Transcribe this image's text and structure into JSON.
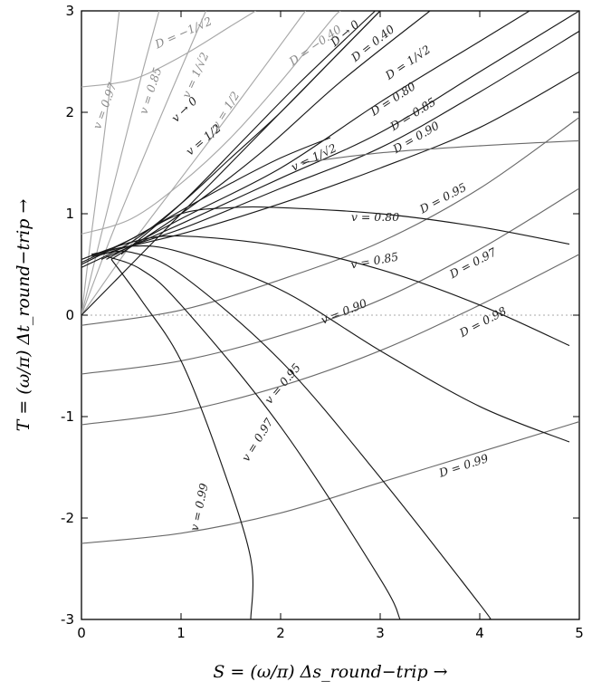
{
  "chart_data": {
    "type": "line",
    "xlabel": "S = (ω/π) Δs_round−trip →",
    "ylabel": "T = (ω/π) Δt_round−trip →",
    "xlim": [
      0,
      5
    ],
    "ylim": [
      -3,
      3
    ],
    "x_ticks": [
      "0",
      "1",
      "2",
      "3",
      "4",
      "5"
    ],
    "y_ticks": [
      "-3",
      "-2",
      "-1",
      "0",
      "1",
      "2",
      "3"
    ],
    "zero_line": true,
    "colors": {
      "light": "#a8a8a8",
      "dark": "#1a1a1a",
      "mid": "#6a6a6a",
      "zero": "#aaaaaa"
    },
    "series": [
      {
        "family": "v",
        "name": "v=0.97",
        "label": "v = 0.97",
        "tone": "light",
        "points": [
          [
            0,
            0
          ],
          [
            0.1,
            0.8
          ],
          [
            0.2,
            1.55
          ],
          [
            0.3,
            2.35
          ],
          [
            0.38,
            3
          ]
        ],
        "label_at": [
          0.27,
          2.05
        ],
        "label_rot": -70
      },
      {
        "family": "v",
        "name": "v=0.85",
        "label": "v = 0.85",
        "tone": "light",
        "points": [
          [
            0,
            0
          ],
          [
            0.2,
            0.8
          ],
          [
            0.4,
            1.58
          ],
          [
            0.6,
            2.35
          ],
          [
            0.78,
            3
          ]
        ],
        "label_at": [
          0.73,
          2.2
        ],
        "label_rot": -72
      },
      {
        "family": "v",
        "name": "v=1/√2",
        "label": "v = 1/√2",
        "tone": "light",
        "points": [
          [
            0,
            0
          ],
          [
            0.3,
            0.78
          ],
          [
            0.6,
            1.5
          ],
          [
            0.9,
            2.2
          ],
          [
            1.25,
            3
          ]
        ],
        "label_at": [
          1.18,
          2.35
        ],
        "label_rot": -66
      },
      {
        "family": "v",
        "name": "v=1/2",
        "label": "v = 1/2",
        "tone": "light",
        "points": [
          [
            0,
            0
          ],
          [
            0.5,
            0.7
          ],
          [
            1.0,
            1.35
          ],
          [
            1.5,
            2.0
          ],
          [
            2.25,
            3
          ]
        ],
        "label_at": [
          1.48,
          2.0
        ],
        "label_rot": -58
      },
      {
        "family": "D",
        "name": "D=-1/√2",
        "label": "D = −1/√2",
        "tone": "light",
        "points": [
          [
            0,
            2.25
          ],
          [
            0.5,
            2.32
          ],
          [
            1.0,
            2.55
          ],
          [
            1.5,
            2.85
          ],
          [
            1.75,
            3
          ]
        ],
        "label_at": [
          1.04,
          2.75
        ],
        "label_rot": -24
      },
      {
        "family": "D",
        "name": "D=-0.40",
        "label": "D = −0.40",
        "tone": "light",
        "points": [
          [
            0,
            0.8
          ],
          [
            0.5,
            0.95
          ],
          [
            1.0,
            1.3
          ],
          [
            1.5,
            1.75
          ],
          [
            2.0,
            2.3
          ],
          [
            2.5,
            2.9
          ],
          [
            2.6,
            3
          ]
        ],
        "label_at": [
          2.37,
          2.63
        ],
        "label_rot": -35
      },
      {
        "family": "v",
        "name": "v→0",
        "label": "v → 0",
        "tone": "dark",
        "points": [
          [
            0,
            0
          ],
          [
            0.5,
            0.5
          ],
          [
            1,
            1.0
          ],
          [
            1.5,
            1.5
          ],
          [
            2,
            2.0
          ],
          [
            2.5,
            2.5
          ],
          [
            3,
            3.0
          ]
        ],
        "label_at": [
          1.06,
          2.0
        ],
        "label_rot": -44
      },
      {
        "family": "v",
        "name": "v=1/2 (dark)",
        "label": "v = 1/2",
        "tone": "dark",
        "points": [
          [
            0,
            0.47
          ],
          [
            0.5,
            0.72
          ],
          [
            1.0,
            1.1
          ],
          [
            1.5,
            1.55
          ],
          [
            2.0,
            2.0
          ],
          [
            2.5,
            2.5
          ],
          [
            3,
            3.0
          ]
        ],
        "label_at": [
          1.25,
          1.7
        ],
        "label_rot": -40
      },
      {
        "family": "D",
        "name": "D→0",
        "label": "D → 0",
        "tone": "dark",
        "points": [
          [
            0.4,
            0.6
          ],
          [
            1.0,
            1.1
          ],
          [
            1.6,
            1.7
          ],
          [
            2.2,
            2.3
          ],
          [
            2.95,
            3
          ]
        ],
        "label_at": [
          2.67,
          2.75
        ],
        "label_rot": -40
      },
      {
        "family": "D",
        "name": "D=0.40",
        "label": "D = 0.40",
        "tone": "dark",
        "points": [
          [
            0.3,
            0.55
          ],
          [
            1.0,
            1.0
          ],
          [
            1.8,
            1.6
          ],
          [
            2.6,
            2.3
          ],
          [
            3.5,
            3
          ]
        ],
        "label_at": [
          2.95,
          2.65
        ],
        "label_rot": -38
      },
      {
        "family": "D",
        "name": "D=1/√2",
        "label": "D = 1/√2",
        "tone": "dark",
        "points": [
          [
            0.25,
            0.55
          ],
          [
            1.0,
            0.95
          ],
          [
            2.0,
            1.45
          ],
          [
            3.0,
            2.1
          ],
          [
            4.0,
            2.7
          ],
          [
            4.5,
            3
          ]
        ],
        "label_at": [
          3.3,
          2.46
        ],
        "label_rot": -34
      },
      {
        "family": "D",
        "name": "D=0.80",
        "label": "D = 0.80",
        "tone": "dark",
        "points": [
          [
            0.2,
            0.55
          ],
          [
            1.0,
            0.9
          ],
          [
            2.0,
            1.35
          ],
          [
            3.0,
            1.8
          ],
          [
            4.0,
            2.4
          ],
          [
            5.0,
            3
          ]
        ],
        "label_at": [
          3.15,
          2.1
        ],
        "label_rot": -33
      },
      {
        "family": "D",
        "name": "D=0.85",
        "label": "D = 0.85",
        "tone": "dark",
        "points": [
          [
            0.15,
            0.58
          ],
          [
            1.0,
            0.85
          ],
          [
            2.0,
            1.25
          ],
          [
            3.0,
            1.65
          ],
          [
            4.0,
            2.2
          ],
          [
            5.0,
            2.8
          ]
        ],
        "label_at": [
          3.35,
          1.95
        ],
        "label_rot": -32
      },
      {
        "family": "D",
        "name": "D=0.90",
        "label": "D = 0.90",
        "tone": "dark",
        "points": [
          [
            0.1,
            0.6
          ],
          [
            1.0,
            0.8
          ],
          [
            2.0,
            1.1
          ],
          [
            3.0,
            1.45
          ],
          [
            4.0,
            1.85
          ],
          [
            5.0,
            2.4
          ]
        ],
        "label_at": [
          3.38,
          1.72
        ],
        "label_rot": -30
      },
      {
        "family": "D",
        "name": "D=0.95",
        "label": "D = 0.95",
        "tone": "mid",
        "points": [
          [
            0,
            -0.1
          ],
          [
            1,
            0.05
          ],
          [
            2,
            0.35
          ],
          [
            3,
            0.72
          ],
          [
            4,
            1.25
          ],
          [
            5,
            1.95
          ]
        ],
        "label_at": [
          3.65,
          1.12
        ],
        "label_rot": -28
      },
      {
        "family": "D",
        "name": "D=0.97",
        "label": "D = 0.97",
        "tone": "mid",
        "points": [
          [
            0,
            -0.58
          ],
          [
            1,
            -0.45
          ],
          [
            2,
            -0.2
          ],
          [
            3,
            0.15
          ],
          [
            4,
            0.65
          ],
          [
            5,
            1.25
          ]
        ],
        "label_at": [
          3.95,
          0.48
        ],
        "label_rot": -28
      },
      {
        "family": "D",
        "name": "D=0.98",
        "label": "D = 0.98",
        "tone": "mid",
        "points": [
          [
            0,
            -1.08
          ],
          [
            1,
            -0.95
          ],
          [
            2,
            -0.7
          ],
          [
            3,
            -0.35
          ],
          [
            4,
            0.1
          ],
          [
            5,
            0.6
          ]
        ],
        "label_at": [
          4.05,
          -0.1
        ],
        "label_rot": -28
      },
      {
        "family": "D",
        "name": "D=0.99",
        "label": "D = 0.99",
        "tone": "mid",
        "points": [
          [
            0,
            -2.25
          ],
          [
            1,
            -2.15
          ],
          [
            2,
            -1.95
          ],
          [
            3,
            -1.65
          ],
          [
            4,
            -1.35
          ],
          [
            5,
            -1.05
          ]
        ],
        "label_at": [
          3.85,
          -1.52
        ],
        "label_rot": -18
      },
      {
        "family": "D",
        "name": "D-top",
        "label": "",
        "tone": "mid",
        "points": [
          [
            2.2,
            1.5
          ],
          [
            3,
            1.6
          ],
          [
            4,
            1.67
          ],
          [
            5,
            1.72
          ]
        ],
        "label_at": null,
        "label_rot": 0
      },
      {
        "family": "v",
        "name": "v=1/√2 (dark)",
        "label": "v = 1/√2",
        "tone": "dark",
        "points": [
          [
            0,
            0.5
          ],
          [
            0.5,
            0.75
          ],
          [
            1.0,
            1.03
          ],
          [
            1.5,
            1.3
          ],
          [
            2.0,
            1.55
          ],
          [
            2.5,
            1.75
          ]
        ],
        "label_at": [
          2.35,
          1.52
        ],
        "label_rot": -25
      },
      {
        "family": "v",
        "name": "v=0.80",
        "label": "v = 0.80",
        "tone": "dark",
        "points": [
          [
            0,
            0.52
          ],
          [
            0.5,
            0.75
          ],
          [
            1.0,
            1.0
          ],
          [
            1.5,
            1.06
          ],
          [
            2.0,
            1.06
          ],
          [
            3.0,
            1.0
          ],
          [
            4.0,
            0.87
          ],
          [
            4.9,
            0.7
          ]
        ],
        "label_at": [
          2.95,
          0.93
        ],
        "label_rot": 0
      },
      {
        "family": "v",
        "name": "v=0.85",
        "label": "v = 0.85",
        "tone": "dark",
        "points": [
          [
            0,
            0.55
          ],
          [
            0.5,
            0.72
          ],
          [
            1.0,
            0.78
          ],
          [
            2.0,
            0.68
          ],
          [
            3.0,
            0.45
          ],
          [
            4.0,
            0.1
          ],
          [
            4.9,
            -0.3
          ]
        ],
        "label_at": [
          2.95,
          0.5
        ],
        "label_rot": -10
      },
      {
        "family": "v",
        "name": "v=0.90",
        "label": "v = 0.90",
        "tone": "dark",
        "points": [
          [
            0.1,
            0.58
          ],
          [
            0.5,
            0.68
          ],
          [
            1.0,
            0.62
          ],
          [
            2.0,
            0.25
          ],
          [
            3.0,
            -0.35
          ],
          [
            4.0,
            -0.9
          ],
          [
            4.9,
            -1.25
          ]
        ],
        "label_at": [
          2.65,
          0.0
        ],
        "label_rot": -22
      },
      {
        "family": "v",
        "name": "v=0.95",
        "label": "v = 0.95",
        "tone": "dark",
        "points": [
          [
            0.2,
            0.6
          ],
          [
            0.5,
            0.62
          ],
          [
            1.0,
            0.4
          ],
          [
            2.0,
            -0.45
          ],
          [
            3.0,
            -1.6
          ],
          [
            4.0,
            -2.85
          ],
          [
            4.1,
            -3
          ]
        ],
        "label_at": [
          2.05,
          -0.7
        ],
        "label_rot": -50
      },
      {
        "family": "v",
        "name": "v=0.97",
        "label": "v = 0.97",
        "tone": "dark",
        "points": [
          [
            0.25,
            0.58
          ],
          [
            0.6,
            0.45
          ],
          [
            1.0,
            0.1
          ],
          [
            2.0,
            -1.1
          ],
          [
            3.0,
            -2.6
          ],
          [
            3.2,
            -3
          ]
        ],
        "label_at": [
          1.8,
          -1.25
        ],
        "label_rot": -58
      },
      {
        "family": "v",
        "name": "v=0.99",
        "label": "v = 0.99",
        "tone": "dark",
        "points": [
          [
            0.3,
            0.55
          ],
          [
            0.6,
            0.15
          ],
          [
            1.0,
            -0.45
          ],
          [
            1.4,
            -1.45
          ],
          [
            1.7,
            -2.4
          ],
          [
            1.7,
            -3
          ]
        ],
        "label_at": [
          1.22,
          -1.9
        ],
        "label_rot": -78
      }
    ]
  }
}
